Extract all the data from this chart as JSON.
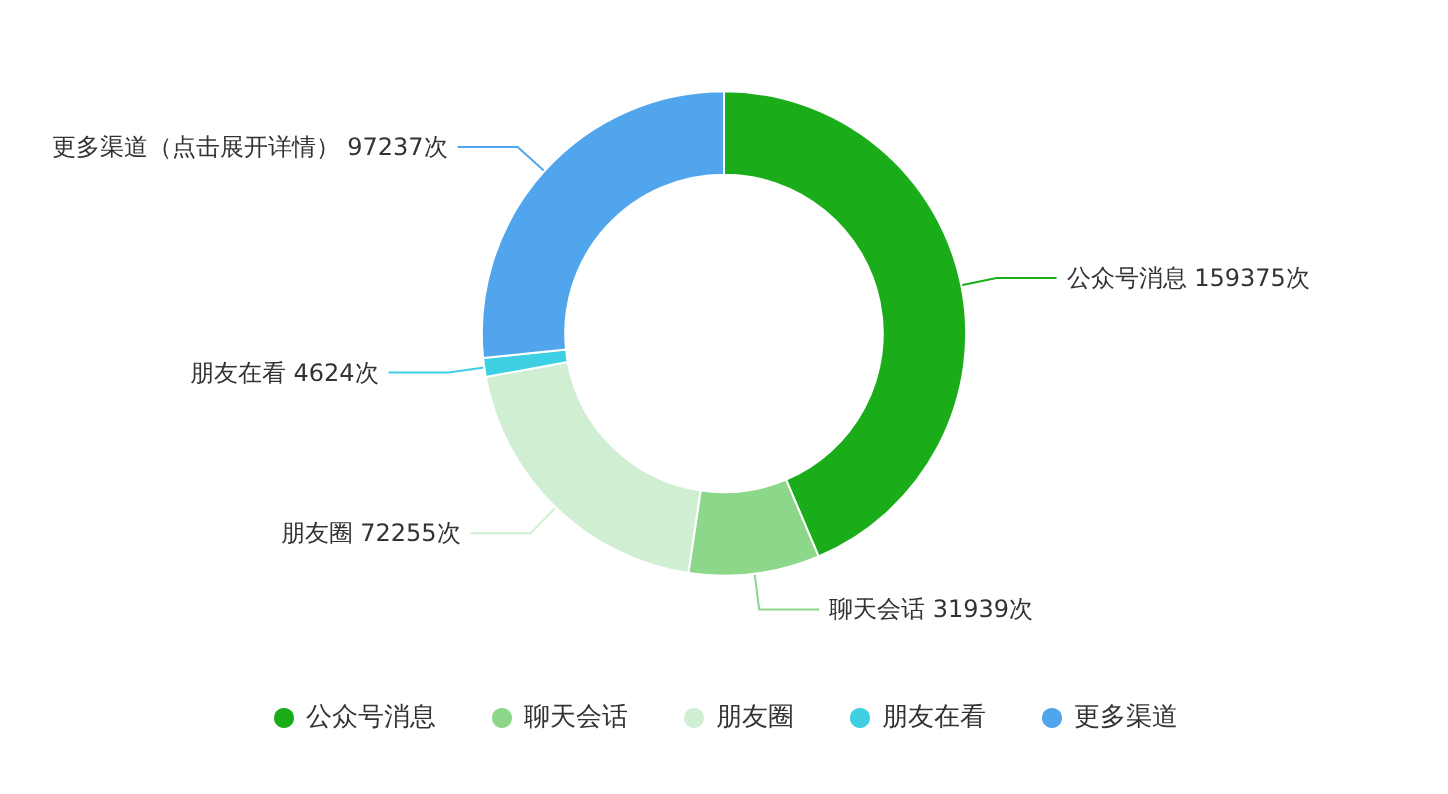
{
  "chart_data": {
    "type": "donut",
    "categories": [
      "公众号消息",
      "聊天会话",
      "朋友圈",
      "朋友在看",
      "更多渠道"
    ],
    "values": [
      159375,
      31939,
      72255,
      4624,
      97237
    ],
    "value_labels": [
      "公众号消息 159375次",
      "聊天会话 31939次",
      "朋友圈 72255次",
      "朋友在看 4624次",
      "更多渠道（点击展开详情） 97237次"
    ],
    "colors": [
      "#1aad19",
      "#8dd78a",
      "#d0efd2",
      "#3fcfe2",
      "#50a5ec"
    ],
    "legend": "bottom"
  }
}
